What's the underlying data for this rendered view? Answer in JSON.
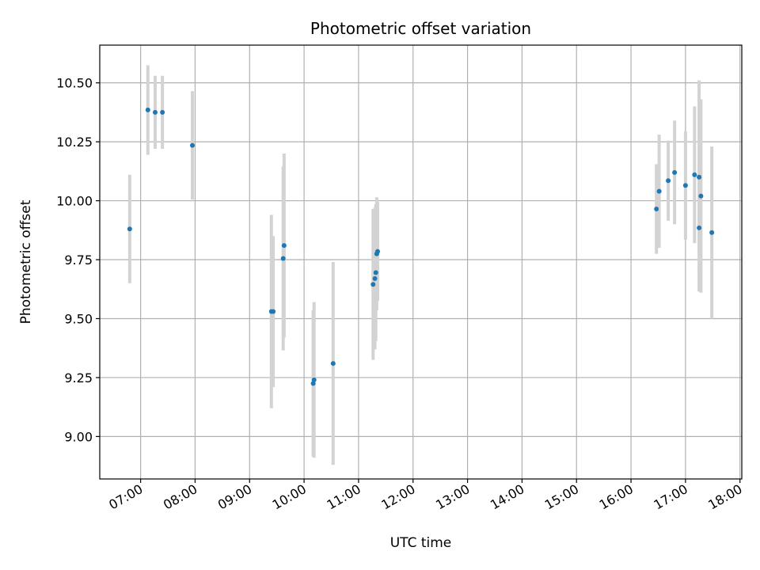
{
  "chart_data": {
    "type": "scatter",
    "title": "Photometric offset variation",
    "xlabel": "UTC time",
    "ylabel": "Photometric offset",
    "x_ticks": [
      "07:00",
      "08:00",
      "09:00",
      "10:00",
      "11:00",
      "12:00",
      "13:00",
      "14:00",
      "15:00",
      "16:00",
      "17:00",
      "18:00"
    ],
    "y_ticks": [
      "9.00",
      "9.25",
      "9.50",
      "9.75",
      "10.00",
      "10.25",
      "10.50"
    ],
    "xlim": [
      "06:15",
      "18:02"
    ],
    "ylim": [
      8.82,
      10.66
    ],
    "grid": true,
    "colors": {
      "points": "#1f77b4",
      "errorbars": "#d3d3d3",
      "grid": "#b0b0b0"
    },
    "points": [
      {
        "x": "06:48",
        "y": 9.88,
        "err": 0.23
      },
      {
        "x": "07:08",
        "y": 10.385,
        "err": 0.19
      },
      {
        "x": "07:16",
        "y": 10.375,
        "err": 0.155
      },
      {
        "x": "07:24",
        "y": 10.375,
        "err": 0.155
      },
      {
        "x": "07:57",
        "y": 10.235,
        "err": 0.23
      },
      {
        "x": "09:24",
        "y": 9.53,
        "err": 0.41
      },
      {
        "x": "09:26",
        "y": 9.53,
        "err": 0.32
      },
      {
        "x": "09:37",
        "y": 9.755,
        "err": 0.39
      },
      {
        "x": "09:38",
        "y": 9.81,
        "err": 0.39
      },
      {
        "x": "10:10",
        "y": 9.225,
        "err": 0.31
      },
      {
        "x": "10:11",
        "y": 9.24,
        "err": 0.33
      },
      {
        "x": "10:32",
        "y": 9.31,
        "err": 0.43
      },
      {
        "x": "11:16",
        "y": 9.645,
        "err": 0.32
      },
      {
        "x": "11:18",
        "y": 9.67,
        "err": 0.3
      },
      {
        "x": "11:19",
        "y": 9.695,
        "err": 0.29
      },
      {
        "x": "11:20",
        "y": 9.775,
        "err": 0.24
      },
      {
        "x": "11:21",
        "y": 9.785,
        "err": 0.21
      },
      {
        "x": "16:28",
        "y": 9.965,
        "err": 0.19
      },
      {
        "x": "16:31",
        "y": 10.04,
        "err": 0.24
      },
      {
        "x": "16:41",
        "y": 10.085,
        "err": 0.17
      },
      {
        "x": "16:48",
        "y": 10.12,
        "err": 0.22
      },
      {
        "x": "17:00",
        "y": 10.065,
        "err": 0.23
      },
      {
        "x": "17:10",
        "y": 10.11,
        "err": 0.29
      },
      {
        "x": "17:15",
        "y": 9.885,
        "err": 0.27
      },
      {
        "x": "17:15",
        "y": 10.1,
        "err": 0.41
      },
      {
        "x": "17:17",
        "y": 10.02,
        "err": 0.41
      },
      {
        "x": "17:29",
        "y": 9.865,
        "err": 0.365
      }
    ]
  }
}
